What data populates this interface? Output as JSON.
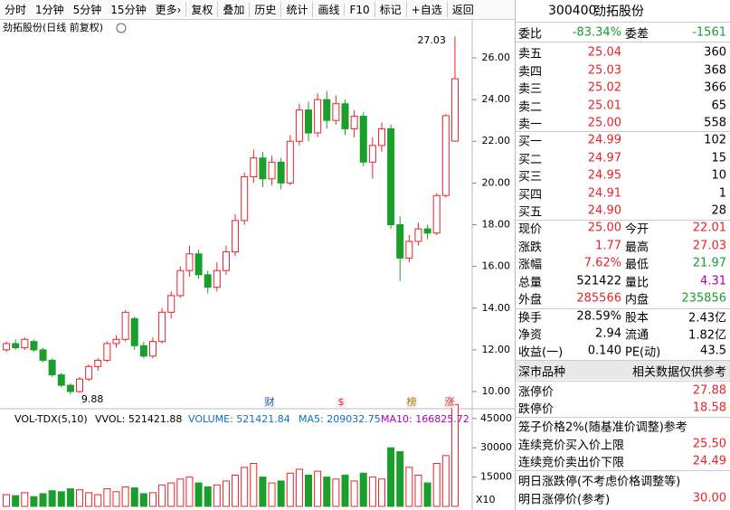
{
  "toolbar": {
    "periods": [
      "分时",
      "1分钟",
      "5分钟",
      "15分钟",
      "更多›"
    ],
    "tools": [
      "复权",
      "叠加",
      "历史",
      "统计",
      "画线",
      "F10",
      "标记",
      "+自选",
      "返回"
    ]
  },
  "chart_data": [
    {
      "type": "candlestick",
      "title": "劲拓股份(日线 前复权)",
      "open": [
        12.0,
        12.3,
        12.1,
        12.4,
        12.0,
        11.5,
        10.8,
        10.3,
        10.0,
        10.6,
        11.2,
        11.5,
        12.3,
        12.5,
        13.5,
        12.2,
        11.7,
        12.4,
        13.8,
        14.6,
        15.8,
        16.6,
        15.6,
        15.0,
        15.8,
        16.7,
        18.2,
        20.3,
        21.2,
        20.2,
        21.0,
        20.0,
        22.0,
        23.5,
        22.4,
        24.0,
        23.0,
        23.8,
        22.6,
        23.2,
        21.0,
        21.8,
        22.6,
        18.0,
        16.4,
        17.2,
        17.8,
        17.6,
        19.4,
        22.01
      ],
      "high": [
        12.4,
        12.5,
        12.6,
        12.5,
        12.1,
        11.6,
        10.9,
        10.4,
        10.7,
        11.3,
        11.6,
        12.4,
        12.7,
        13.9,
        13.6,
        12.4,
        12.6,
        14.0,
        14.8,
        16.0,
        17.0,
        16.8,
        15.8,
        16.2,
        17.0,
        18.5,
        20.5,
        21.6,
        21.5,
        21.3,
        21.2,
        22.3,
        23.8,
        23.9,
        24.3,
        24.4,
        24.2,
        24.0,
        23.5,
        23.4,
        22.2,
        22.9,
        22.8,
        18.4,
        17.5,
        18.1,
        18.0,
        19.5,
        23.3,
        27.03
      ],
      "low": [
        11.9,
        12.0,
        12.0,
        11.9,
        11.4,
        10.7,
        10.2,
        9.88,
        9.95,
        10.5,
        11.0,
        11.4,
        12.1,
        12.4,
        12.0,
        11.6,
        11.6,
        12.3,
        13.5,
        14.5,
        15.5,
        15.4,
        14.7,
        14.8,
        15.6,
        16.5,
        18.0,
        20.0,
        19.8,
        19.9,
        19.7,
        19.9,
        21.8,
        22.0,
        22.2,
        22.6,
        22.8,
        22.3,
        22.2,
        20.8,
        20.2,
        21.5,
        17.8,
        15.3,
        16.2,
        17.0,
        17.3,
        17.5,
        19.3,
        21.97
      ],
      "close": [
        12.3,
        12.1,
        12.5,
        12.0,
        11.5,
        10.8,
        10.3,
        10.0,
        10.6,
        11.2,
        11.5,
        12.3,
        12.5,
        13.8,
        12.2,
        11.7,
        12.4,
        13.8,
        14.6,
        15.8,
        16.6,
        15.6,
        15.0,
        15.8,
        16.7,
        18.2,
        20.3,
        21.2,
        20.2,
        21.0,
        20.0,
        22.0,
        23.5,
        22.4,
        24.0,
        23.0,
        23.8,
        22.6,
        23.2,
        21.0,
        21.8,
        22.6,
        18.0,
        16.4,
        17.2,
        17.8,
        17.6,
        19.4,
        23.23,
        25.0
      ],
      "up_color": "#e8232a",
      "down_color": "#1a9e2c",
      "ylim": [
        9.35,
        27.04
      ],
      "yticks": [
        {
          "value": 10,
          "label": "10.00"
        },
        {
          "value": 12,
          "label": "12.00"
        },
        {
          "value": 14,
          "label": "14.00"
        },
        {
          "value": 16,
          "label": "16.00"
        },
        {
          "value": 18,
          "label": "18.00"
        },
        {
          "value": 20,
          "label": "20.00"
        },
        {
          "value": 22,
          "label": "22.00"
        },
        {
          "value": 24,
          "label": "24.00"
        },
        {
          "value": 26,
          "label": "26.00"
        }
      ],
      "low_label": 9.88,
      "high_label": 27.03,
      "events": [
        "财",
        "$",
        "榜",
        "涨"
      ]
    },
    {
      "type": "volume",
      "title": "VOL-TDX(5,10)",
      "indicators": [
        "VVOL: 521421.88",
        "VOLUME: 521421.84",
        "MA5: 209032.75",
        "MA10: 166825.72"
      ],
      "values": [
        6000,
        5500,
        7000,
        5000,
        6500,
        8000,
        7500,
        9000,
        8500,
        7000,
        6000,
        9000,
        7500,
        10000,
        9500,
        6500,
        7000,
        11000,
        12000,
        14000,
        15000,
        12000,
        10000,
        11000,
        13000,
        16000,
        20000,
        22000,
        15000,
        12000,
        13000,
        17000,
        19000,
        16000,
        18000,
        15000,
        14000,
        16000,
        13000,
        17000,
        15000,
        14000,
        30000,
        28000,
        20000,
        16000,
        12000,
        22000,
        26000,
        52142
      ],
      "ylim": [
        0,
        50000
      ],
      "yticks": [
        15000,
        30000,
        45000
      ],
      "unit_label": "X10"
    }
  ],
  "quote": {
    "code": "300400",
    "name": "劲拓股份",
    "ratio": [
      "委比",
      "-83.34%",
      "委差",
      "-1561"
    ],
    "asks": [
      [
        "卖五",
        "25.04",
        "360"
      ],
      [
        "卖四",
        "25.03",
        "368"
      ],
      [
        "卖三",
        "25.02",
        "366"
      ],
      [
        "卖二",
        "25.01",
        "65"
      ],
      [
        "卖一",
        "25.00",
        "558"
      ]
    ],
    "bids": [
      [
        "买一",
        "24.99",
        "102"
      ],
      [
        "买二",
        "24.97",
        "15"
      ],
      [
        "买三",
        "24.95",
        "10"
      ],
      [
        "买四",
        "24.91",
        "1"
      ],
      [
        "买五",
        "24.90",
        "28"
      ]
    ],
    "stats": [
      [
        "现价",
        "25.00",
        "今开",
        "22.01"
      ],
      [
        "涨跌",
        "1.77",
        "最高",
        "27.03"
      ],
      [
        "涨幅",
        "7.62%",
        "最低",
        "21.97"
      ],
      [
        "总量",
        "521422",
        "量比",
        "4.31"
      ],
      [
        "外盘",
        "285566",
        "内盘",
        "235856"
      ]
    ],
    "fundamentals": [
      [
        "换手",
        "28.59%",
        "股本",
        "2.43亿"
      ],
      [
        "净资",
        "2.94",
        "流通",
        "1.82亿"
      ],
      [
        "收益(一)",
        "0.140",
        "PE(动)",
        "43.5"
      ]
    ],
    "market": "深市品种",
    "note": "相关数据仅供参考",
    "limits": [
      [
        "涨停价",
        "27.88"
      ],
      [
        "跌停价",
        "18.58"
      ]
    ],
    "cage": "笼子价格2%(随基准价调整)参考",
    "bounds": [
      [
        "连续竞价买入价上限",
        "25.50"
      ],
      [
        "连续竞价卖出价下限",
        "24.49"
      ]
    ],
    "tomorrow": "明日涨跌停(不考虑价格调整等)",
    "tomorrow_up": [
      "明日涨停价(参考)",
      "30.00"
    ]
  }
}
